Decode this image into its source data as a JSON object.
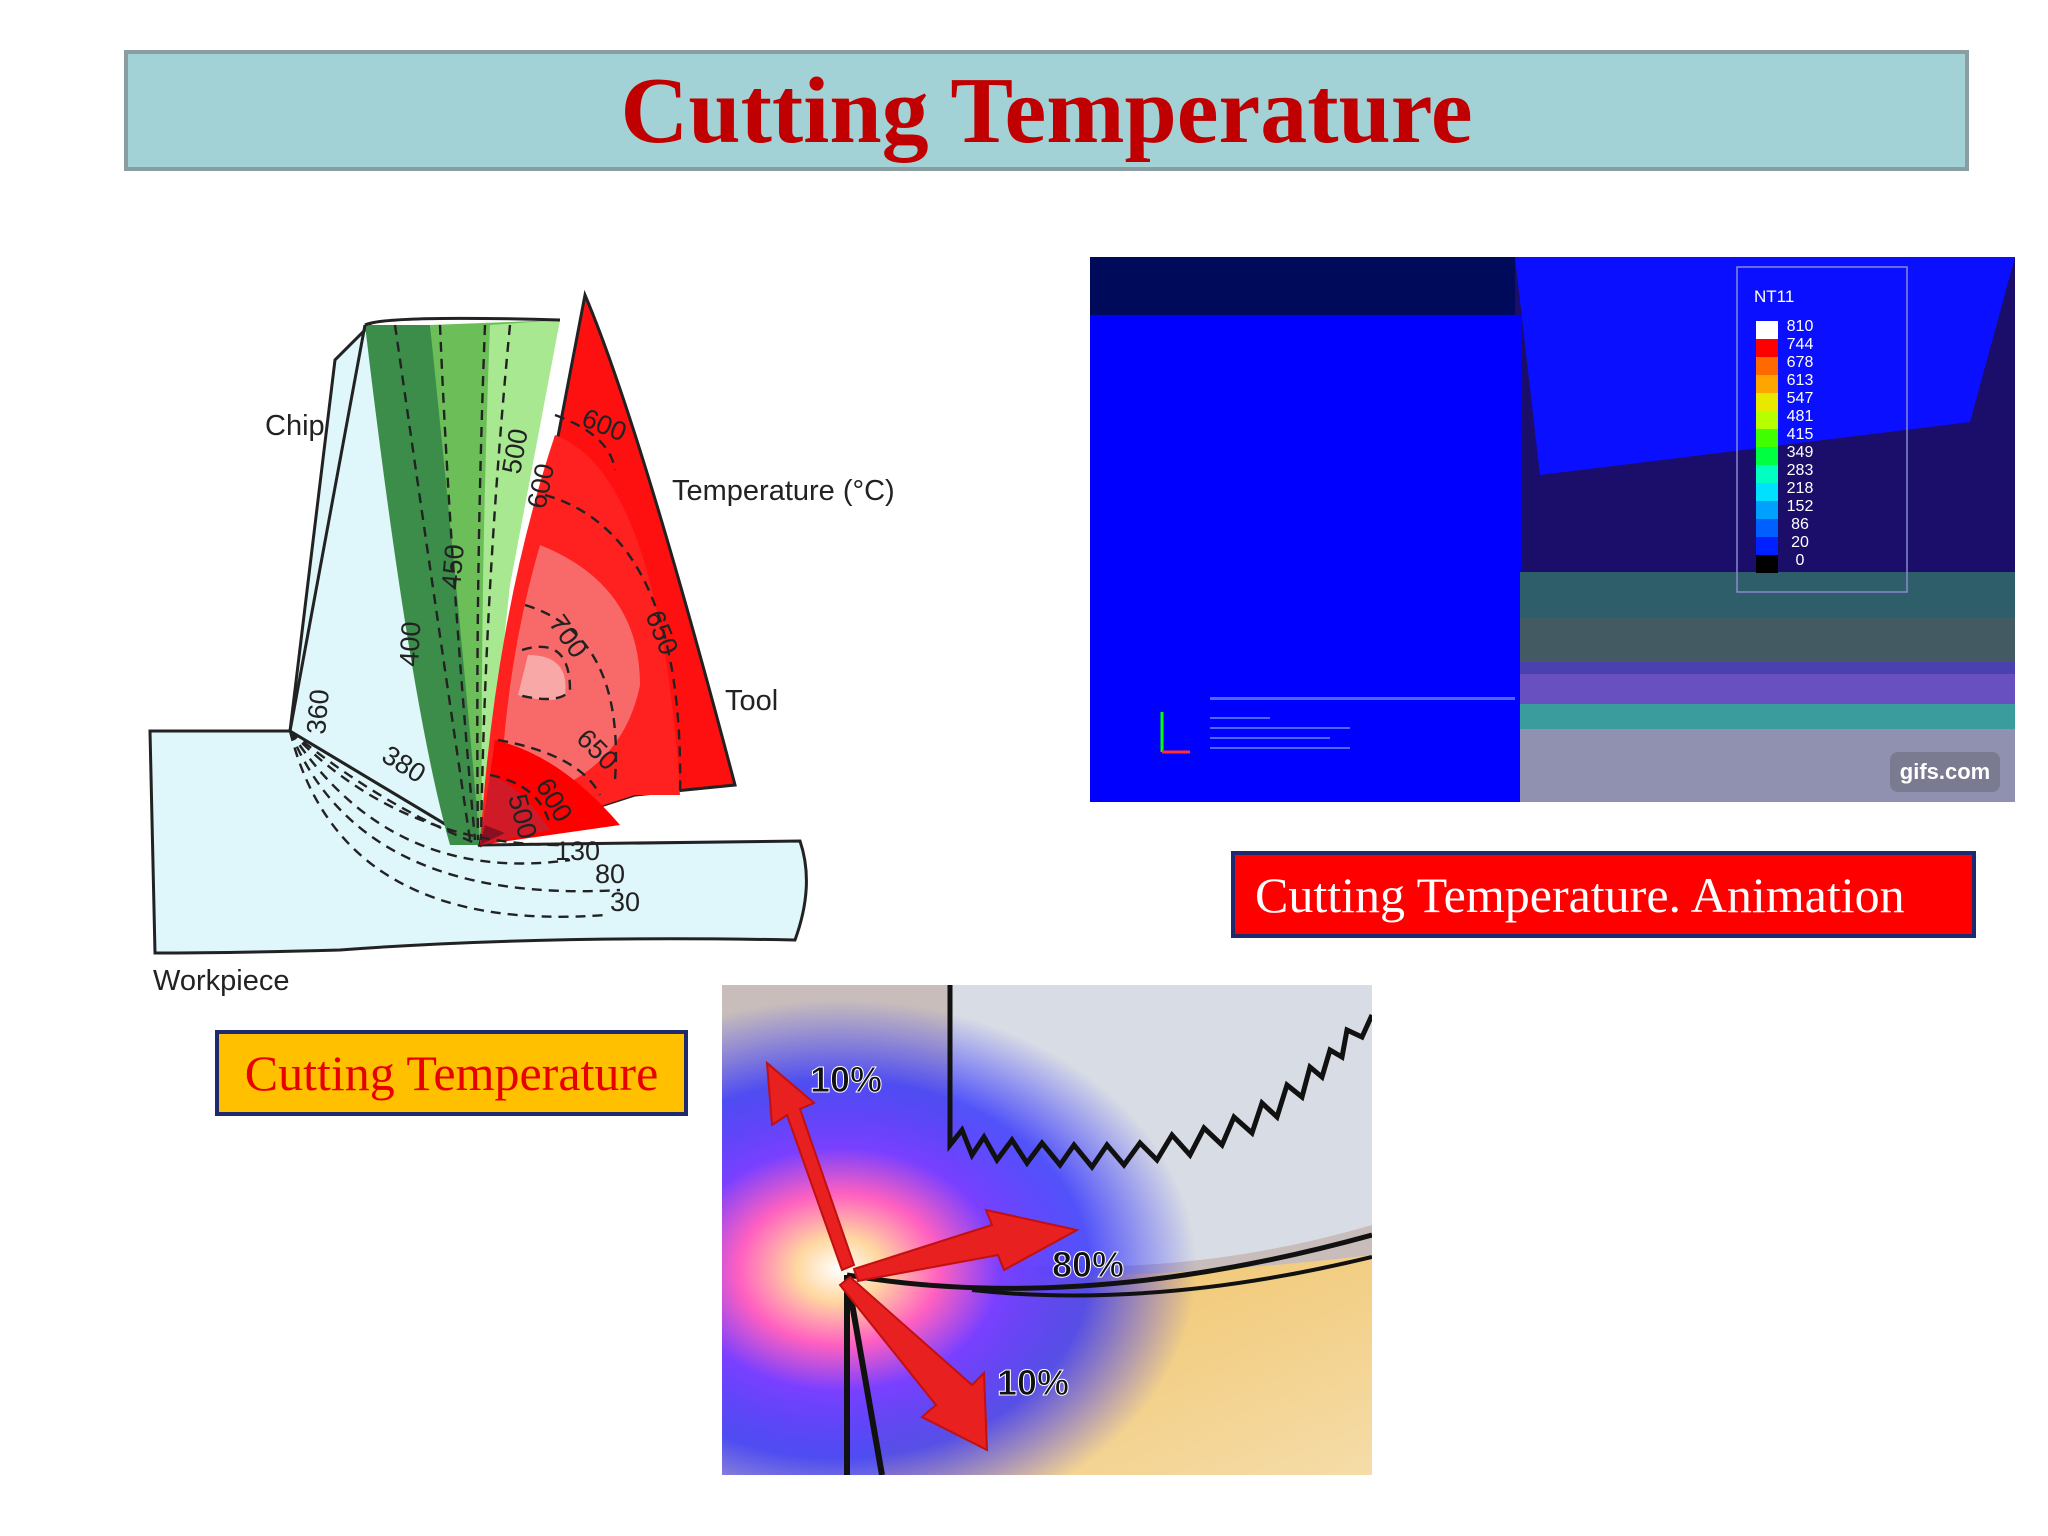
{
  "slide": {
    "title": "Cutting Temperature",
    "caption_diagram": "Cutting Temperature",
    "caption_animation": "Cutting Temperature. Animation"
  },
  "diagram": {
    "labels": {
      "chip": "Chip",
      "temperature": "Temperature (°C)",
      "tool": "Tool",
      "workpiece": "Workpiece"
    },
    "isotherms": {
      "chip_500": "500",
      "chip_600": "600",
      "chip_450": "450",
      "chip_400": "400",
      "chip_360": "360",
      "chip_380": "380",
      "tool_600": "600",
      "tool_700": "700",
      "tool_650": "650",
      "tool_650b": "650",
      "tool_600b": "600",
      "tool_500": "500",
      "work_130": "130",
      "work_80": "80",
      "work_30": "30"
    }
  },
  "simulation": {
    "legend_title": "NT11",
    "legend_values": [
      "810",
      "744",
      "678",
      "613",
      "547",
      "481",
      "415",
      "349",
      "283",
      "218",
      "152",
      "86",
      "20",
      "0"
    ],
    "legend_colors": [
      "#ffffff",
      "#ff0000",
      "#ff6a00",
      "#ffa500",
      "#e8e800",
      "#b5ff00",
      "#40ff00",
      "#00ff40",
      "#00ffc0",
      "#00e0ff",
      "#00a0ff",
      "#0060ff",
      "#0020ff",
      "#000000"
    ],
    "watermark": "gifs.com"
  },
  "heat_split": {
    "labels": [
      "10%",
      "80%",
      "10%"
    ]
  }
}
